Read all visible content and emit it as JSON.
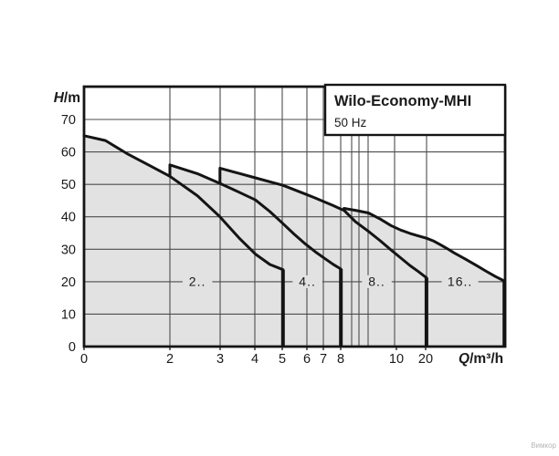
{
  "chart": {
    "title": "Wilo-Economy-MHI",
    "subtitle": "50 Hz",
    "y_axis_title_main": "H",
    "y_axis_title_unit": "/m",
    "x_axis_title_main": "Q",
    "x_axis_title_unit": "/m³/h",
    "watermark": "Вимкор"
  },
  "chart_data": {
    "type": "line",
    "title": "Wilo-Economy-MHI",
    "subtitle": "50 Hz",
    "xlabel": "Q/m³/h",
    "ylabel": "H/m",
    "x_scale": "logarithmic (flow), linear segment 0-2",
    "grid": true,
    "legend_position": "inline-labels-on-20m-gridline",
    "ylim": [
      0,
      80
    ],
    "xlim": [
      0,
      30
    ],
    "y_ticks": [
      0,
      10,
      20,
      30,
      40,
      50,
      60,
      70
    ],
    "x_tick_labels": [
      "0",
      "2",
      "3",
      "4",
      "5",
      "6",
      "7",
      "8",
      "10",
      "20"
    ],
    "colors": {
      "envelope_fill": "#e2e2e2",
      "curve": "#141414",
      "grid": "#4d4d4d",
      "frame": "#141414",
      "text": "#1a1a1a",
      "watermark": "#b5b5b5",
      "box_fill": "#ffffff"
    },
    "series": [
      {
        "name": "2..",
        "label": "2..",
        "label_q": 2.5,
        "label_h": 20,
        "jump_from_h": null,
        "q_end": 5,
        "points": [
          [
            0,
            65
          ],
          [
            0.5,
            63.5
          ],
          [
            1,
            59.5
          ],
          [
            1.5,
            56
          ],
          [
            2,
            52.5
          ],
          [
            2.5,
            46.5
          ],
          [
            3,
            40
          ],
          [
            3.5,
            33.5
          ],
          [
            4,
            28.5
          ],
          [
            4.5,
            25.3
          ],
          [
            5,
            23.7
          ]
        ]
      },
      {
        "name": "4..",
        "label": "4..",
        "label_q": 6.1,
        "label_h": 20,
        "jump_from_h": 52.5,
        "q_end": 8,
        "points": [
          [
            2,
            56
          ],
          [
            2.5,
            53.3
          ],
          [
            3,
            50.3
          ],
          [
            3.5,
            47.6
          ],
          [
            4,
            45.2
          ],
          [
            4.5,
            41.6
          ],
          [
            5,
            37.9
          ],
          [
            5.5,
            34.5
          ],
          [
            6,
            31.6
          ],
          [
            6.5,
            29.2
          ],
          [
            7,
            27.2
          ],
          [
            7.5,
            25.4
          ],
          [
            8,
            23.9
          ]
        ]
      },
      {
        "name": "8..",
        "label": "8..",
        "label_q": 10.7,
        "label_h": 20,
        "jump_from_h": 50.3,
        "q_end": 16,
        "points": [
          [
            3,
            55
          ],
          [
            3.5,
            53.4
          ],
          [
            4,
            52
          ],
          [
            4.5,
            50.8
          ],
          [
            5,
            49.7
          ],
          [
            5.5,
            48.3
          ],
          [
            6,
            47
          ],
          [
            6.5,
            45.8
          ],
          [
            7,
            44.6
          ],
          [
            7.5,
            43.5
          ],
          [
            8,
            42.4
          ],
          [
            8.2,
            42
          ],
          [
            9,
            38.5
          ],
          [
            10,
            35.5
          ],
          [
            11,
            32.6
          ],
          [
            12,
            29.8
          ],
          [
            13,
            27.3
          ],
          [
            14,
            25
          ],
          [
            15,
            23.1
          ],
          [
            16,
            21.2
          ]
        ]
      },
      {
        "name": "16..",
        "label": "16..",
        "label_q": 21,
        "label_h": 20,
        "jump_from_h": 42,
        "q_end": 30.1,
        "points": [
          [
            8.2,
            42.6
          ],
          [
            9,
            42
          ],
          [
            10,
            41.2
          ],
          [
            11,
            39.3
          ],
          [
            12,
            37.3
          ],
          [
            13,
            35.9
          ],
          [
            14,
            34.9
          ],
          [
            15,
            34.1
          ],
          [
            16,
            33.4
          ],
          [
            17,
            32.5
          ],
          [
            18,
            31.3
          ],
          [
            19,
            30.1
          ],
          [
            20,
            28.9
          ],
          [
            22,
            26.9
          ],
          [
            24,
            25
          ],
          [
            26,
            23.2
          ],
          [
            28,
            21.6
          ],
          [
            30.1,
            20.2
          ]
        ]
      }
    ]
  }
}
